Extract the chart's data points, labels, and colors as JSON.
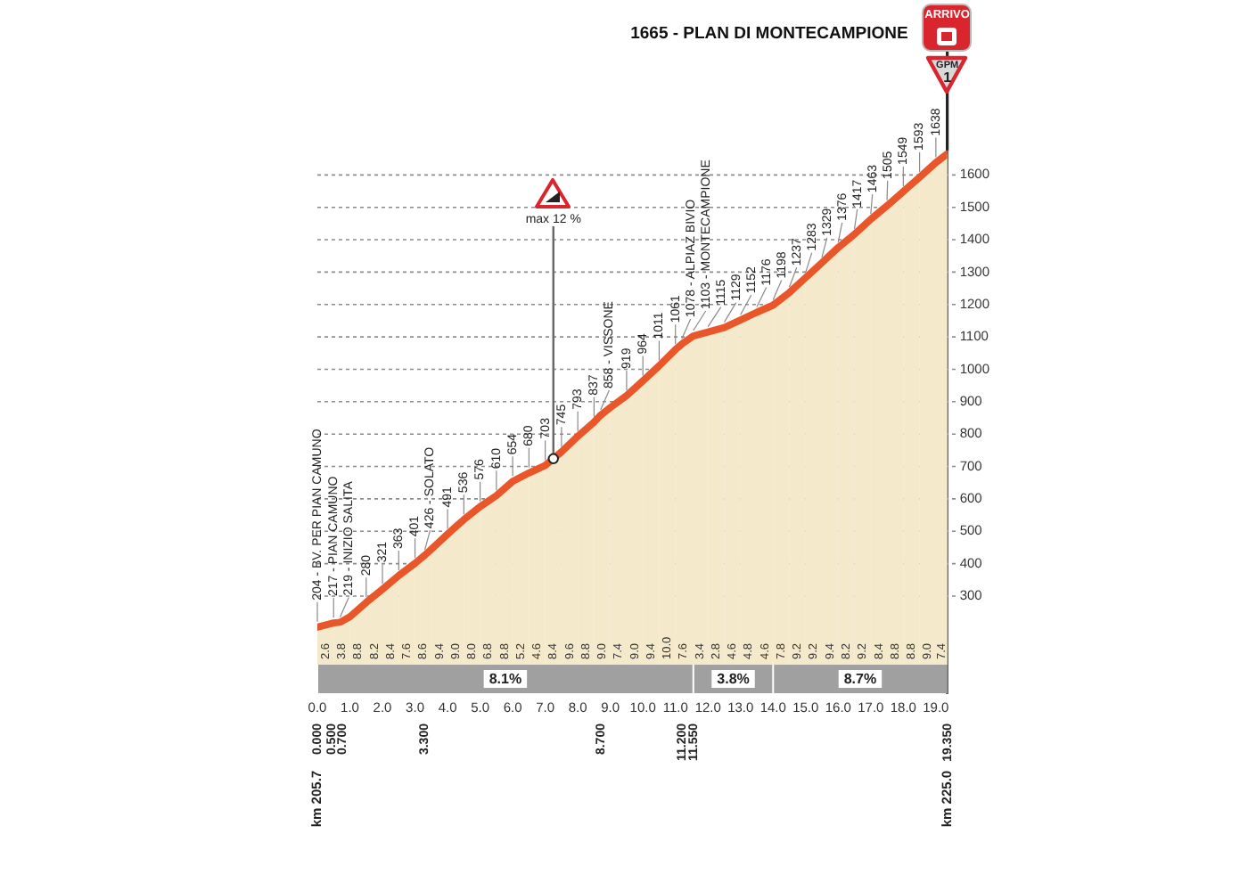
{
  "chart_data": {
    "type": "area",
    "title": "1665 - PLAN DI MONTECAMPIONE",
    "x": [
      0,
      0.5,
      0.7,
      1,
      1.5,
      2,
      2.5,
      3,
      3.3,
      3.5,
      4,
      4.5,
      5,
      5.5,
      6,
      6.5,
      7,
      7.5,
      8,
      8.5,
      8.7,
      9,
      9.5,
      10,
      10.5,
      11,
      11.2,
      11.55,
      12,
      12.5,
      13,
      13.5,
      14,
      14.5,
      15,
      15.5,
      16,
      16.5,
      17,
      17.5,
      18,
      18.5,
      19,
      19.35
    ],
    "values": [
      204,
      217,
      219,
      236,
      280,
      321,
      363,
      401,
      426,
      444,
      491,
      536,
      576,
      610,
      654,
      680,
      703,
      745,
      793,
      837,
      858,
      882,
      919,
      964,
      1011,
      1061,
      1078,
      1103,
      1115,
      1129,
      1152,
      1176,
      1198,
      1237,
      1283,
      1329,
      1376,
      1417,
      1463,
      1505,
      1549,
      1593,
      1638,
      1665
    ],
    "value_labels": [
      "204 - BV. PER PIAN CAMUNO",
      "217 - PIAN CAMUNO",
      "219 - INIZIO SALITA",
      null,
      "280",
      "321",
      "363",
      "401",
      "426 - SOLATO",
      null,
      "491",
      "536",
      "576",
      "610",
      "654",
      "680",
      "703",
      "745",
      "793",
      "837",
      "858 - VISSONE",
      null,
      "919",
      "964",
      "1011",
      "1061",
      "1078 - ALPIAZ BIVIO",
      "1103 - MONTECAMPIONE",
      "1115",
      "1129",
      "1152",
      "1176",
      "1198",
      "1237",
      "1283",
      "1329",
      "1376",
      "1417",
      "1463",
      "1505",
      "1549",
      "1593",
      "1638",
      null
    ],
    "color": "#e8562a",
    "marker": "none",
    "xlim": [
      0,
      19.35
    ],
    "xticks": [
      {
        "value": 0,
        "label": "0.0"
      },
      {
        "value": 1,
        "label": "1.0"
      },
      {
        "value": 2,
        "label": "2.0"
      },
      {
        "value": 3,
        "label": "3.0"
      },
      {
        "value": 4,
        "label": "4.0"
      },
      {
        "value": 5,
        "label": "5.0"
      },
      {
        "value": 6,
        "label": "6.0"
      },
      {
        "value": 7,
        "label": "7.0"
      },
      {
        "value": 8,
        "label": "8.0"
      },
      {
        "value": 9,
        "label": "9.0"
      },
      {
        "value": 10,
        "label": "10.0"
      },
      {
        "value": 11,
        "label": "11.0"
      },
      {
        "value": 12,
        "label": "12.0"
      },
      {
        "value": 13,
        "label": "13.0"
      },
      {
        "value": 14,
        "label": "14.0"
      },
      {
        "value": 15,
        "label": "15.0"
      },
      {
        "value": 16,
        "label": "16.0"
      },
      {
        "value": 17,
        "label": "17.0"
      },
      {
        "value": 18,
        "label": "18.0"
      },
      {
        "value": 19,
        "label": "19.0"
      }
    ],
    "x2lim": [
      0,
      19.35
    ],
    "x2ticks": [
      {
        "value": 0,
        "label": "0.000"
      },
      {
        "value": 0.5,
        "label": "0.500"
      },
      {
        "value": 0.7,
        "label": "0.700"
      },
      {
        "value": 3.3,
        "label": "3.300"
      },
      {
        "value": 8.7,
        "label": "8.700"
      },
      {
        "value": 11.2,
        "label": "11.200"
      },
      {
        "value": 11.55,
        "label": "11.550"
      },
      {
        "value": 19.35,
        "label": "19.350"
      }
    ],
    "ylim": [
      0,
      1700
    ],
    "yticks": [
      300,
      400,
      500,
      600,
      700,
      800,
      900,
      1000,
      1100,
      1200,
      1300,
      1400,
      1500,
      1600
    ],
    "grid": "y",
    "legend": false,
    "bands": [
      {
        "axis": "x",
        "from": 0,
        "to": 0.5,
        "label": "2.6",
        "color": "#f6f3d6"
      },
      {
        "axis": "x",
        "from": 0.5,
        "to": 1,
        "label": "3.8",
        "color": "#f6f3d6"
      },
      {
        "axis": "x",
        "from": 1,
        "to": 1.5,
        "label": "8.8",
        "color": "#f6f3d6"
      },
      {
        "axis": "x",
        "from": 1.5,
        "to": 2,
        "label": "8.2",
        "color": "#f6f3d6"
      },
      {
        "axis": "x",
        "from": 2,
        "to": 2.5,
        "label": "8.4",
        "color": "#f6f3d6"
      },
      {
        "axis": "x",
        "from": 2.5,
        "to": 3,
        "label": "7.6",
        "color": "#f6f3d6"
      },
      {
        "axis": "x",
        "from": 3,
        "to": 3.5,
        "label": "8.6",
        "color": "#f6f3d6"
      },
      {
        "axis": "x",
        "from": 3.5,
        "to": 4,
        "label": "9.4",
        "color": "#f6f3d6"
      },
      {
        "axis": "x",
        "from": 4,
        "to": 4.5,
        "label": "9.0",
        "color": "#f6f3d6"
      },
      {
        "axis": "x",
        "from": 4.5,
        "to": 5,
        "label": "8.0",
        "color": "#f6f3d6"
      },
      {
        "axis": "x",
        "from": 5,
        "to": 5.5,
        "label": "6.8",
        "color": "#f6f3d6"
      },
      {
        "axis": "x",
        "from": 5.5,
        "to": 6,
        "label": "8.8",
        "color": "#f6f3d6"
      },
      {
        "axis": "x",
        "from": 6,
        "to": 6.5,
        "label": "5.2",
        "color": "#f6f3d6"
      },
      {
        "axis": "x",
        "from": 6.5,
        "to": 7,
        "label": "4.6",
        "color": "#f6f3d6"
      },
      {
        "axis": "x",
        "from": 7,
        "to": 7.5,
        "label": "8.4",
        "color": "#f6f3d6"
      },
      {
        "axis": "x",
        "from": 7.5,
        "to": 8,
        "label": "9.6",
        "color": "#f6f3d6"
      },
      {
        "axis": "x",
        "from": 8,
        "to": 8.5,
        "label": "8.8",
        "color": "#f6f3d6"
      },
      {
        "axis": "x",
        "from": 8.5,
        "to": 9,
        "label": "9.0",
        "color": "#f6f3d6"
      },
      {
        "axis": "x",
        "from": 9,
        "to": 9.5,
        "label": "7.4",
        "color": "#f6f3d6"
      },
      {
        "axis": "x",
        "from": 9.5,
        "to": 10,
        "label": "9.0",
        "color": "#f6f3d6"
      },
      {
        "axis": "x",
        "from": 10,
        "to": 10.5,
        "label": "9.4",
        "color": "#f6f3d6"
      },
      {
        "axis": "x",
        "from": 10.5,
        "to": 11,
        "label": "10.0",
        "color": "#f6f3d6"
      },
      {
        "axis": "x",
        "from": 11,
        "to": 11.5,
        "label": "7.6",
        "color": "#f6f3d6"
      },
      {
        "axis": "x",
        "from": 11.5,
        "to": 12,
        "label": "3.4",
        "color": "#f6f3d6"
      },
      {
        "axis": "x",
        "from": 12,
        "to": 12.5,
        "label": "2.8",
        "color": "#f6f3d6"
      },
      {
        "axis": "x",
        "from": 12.5,
        "to": 13,
        "label": "4.6",
        "color": "#f6f3d6"
      },
      {
        "axis": "x",
        "from": 13,
        "to": 13.5,
        "label": "4.8",
        "color": "#f6f3d6"
      },
      {
        "axis": "x",
        "from": 13.5,
        "to": 14,
        "label": "4.6",
        "color": "#f6f3d6"
      },
      {
        "axis": "x",
        "from": 14,
        "to": 14.5,
        "label": "7.8",
        "color": "#f6f3d6"
      },
      {
        "axis": "x",
        "from": 14.5,
        "to": 15,
        "label": "9.2",
        "color": "#f6f3d6"
      },
      {
        "axis": "x",
        "from": 15,
        "to": 15.5,
        "label": "9.2",
        "color": "#f6f3d6"
      },
      {
        "axis": "x",
        "from": 15.5,
        "to": 16,
        "label": "9.4",
        "color": "#f6f3d6"
      },
      {
        "axis": "x",
        "from": 16,
        "to": 16.5,
        "label": "8.2",
        "color": "#f6f3d6"
      },
      {
        "axis": "x",
        "from": 16.5,
        "to": 17,
        "label": "9.2",
        "color": "#f6f3d6"
      },
      {
        "axis": "x",
        "from": 17,
        "to": 17.5,
        "label": "8.4",
        "color": "#f6f3d6"
      },
      {
        "axis": "x",
        "from": 17.5,
        "to": 18,
        "label": "8.8",
        "color": "#f6f3d6"
      },
      {
        "axis": "x",
        "from": 18,
        "to": 18.5,
        "label": "8.8",
        "color": "#f6f3d6"
      },
      {
        "axis": "x",
        "from": 18.5,
        "to": 19,
        "label": "9.0",
        "color": "#f6f3d6"
      },
      {
        "axis": "x",
        "from": 19,
        "to": 19.35,
        "label": "7.4",
        "color": "#f6f3d6"
      },
      {
        "axis": "x",
        "from": 0,
        "to": 11.55,
        "label": "8.1%",
        "color": "#a0a0a0"
      },
      {
        "axis": "x",
        "from": 11.55,
        "to": 14,
        "label": "3.8%",
        "color": "#a0a0a0"
      },
      {
        "axis": "x",
        "from": 14,
        "to": 19.35,
        "label": "8.7%",
        "color": "#a0a0a0"
      }
    ],
    "annotations": [
      {
        "text": "max 12 %",
        "x": 7.25,
        "y": 724
      },
      "ARRIVO",
      "GPM",
      "1",
      "km 205.7",
      "km 225.0"
    ]
  }
}
